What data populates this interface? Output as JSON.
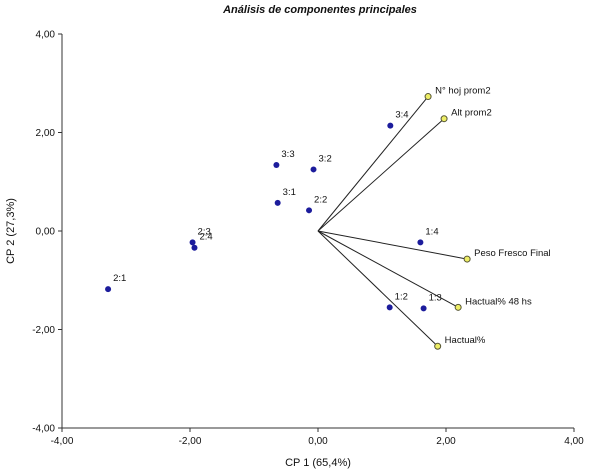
{
  "chart_data": {
    "type": "scatter",
    "subtype": "biplot",
    "title": "Análisis de componentes principales",
    "xlabel": "CP 1 (65,4%)",
    "ylabel": "CP 2 (27,3%)",
    "xlim": [
      -4,
      4
    ],
    "ylim": [
      -4,
      4
    ],
    "x_ticks": [
      "-4,00",
      "-2,00",
      "0,00",
      "2,00",
      "4,00"
    ],
    "y_ticks": [
      "-4,00",
      "-2,00",
      "0,00",
      "2,00",
      "4,00"
    ],
    "grid": false,
    "legend": "none",
    "observations": [
      {
        "label": "2:1",
        "x": -3.28,
        "y": -1.18
      },
      {
        "label": "2:3",
        "x": -1.96,
        "y": -0.23
      },
      {
        "label": "2:4",
        "x": -1.93,
        "y": -0.34
      },
      {
        "label": "3:3",
        "x": -0.65,
        "y": 1.34
      },
      {
        "label": "3:1",
        "x": -0.63,
        "y": 0.57
      },
      {
        "label": "3:2",
        "x": -0.07,
        "y": 1.25
      },
      {
        "label": "2:2",
        "x": -0.14,
        "y": 0.42
      },
      {
        "label": "3:4",
        "x": 1.13,
        "y": 2.14
      },
      {
        "label": "1:4",
        "x": 1.6,
        "y": -0.23
      },
      {
        "label": "1:2",
        "x": 1.12,
        "y": -1.55
      },
      {
        "label": "1:3",
        "x": 1.65,
        "y": -1.57
      }
    ],
    "variables": [
      {
        "label": "N° hoj prom2",
        "x": 1.72,
        "y": 2.73
      },
      {
        "label": "Alt prom2",
        "x": 1.97,
        "y": 2.28
      },
      {
        "label": "Peso Fresco Final",
        "x": 2.33,
        "y": -0.57
      },
      {
        "label": "Hactual% 48 hs",
        "x": 2.19,
        "y": -1.55
      },
      {
        "label": "Hactual%",
        "x": 1.87,
        "y": -2.34
      }
    ],
    "colors": {
      "observation": "#1c1c9c",
      "variable_fill": "#eeee66",
      "variable_stroke": "#555533",
      "vector_line": "#222222"
    }
  }
}
